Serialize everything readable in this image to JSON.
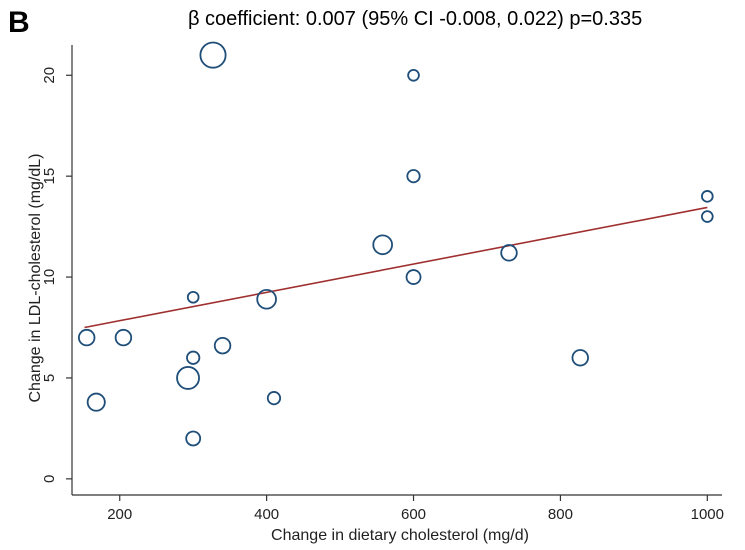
{
  "panel_label": "B",
  "chart_title": "β coefficient: 0.007 (95% CI -0.008, 0.022) p=0.335",
  "colors": {
    "marker_stroke": "#1f4e79",
    "fit_line": "#a0302f",
    "axis": "#333333"
  },
  "chart_data": {
    "type": "scatter",
    "title": "β coefficient: 0.007 (95% CI -0.008, 0.022) p=0.335",
    "xlabel": "Change in dietary cholesterol (mg/d)",
    "ylabel": "Change in LDL-cholesterol (mg/dL)",
    "xlim": [
      135,
      1020
    ],
    "ylim": [
      -0.8,
      21.5
    ],
    "xticks": [
      200,
      400,
      600,
      800,
      1000
    ],
    "yticks": [
      0,
      5,
      10,
      15,
      20
    ],
    "grid": false,
    "marker": "hollow circle, size proportional to study weight",
    "points": [
      {
        "x": 155,
        "y": 7.0,
        "weight": 3
      },
      {
        "x": 168,
        "y": 3.8,
        "weight": 3.5
      },
      {
        "x": 205,
        "y": 7.0,
        "weight": 3
      },
      {
        "x": 293,
        "y": 5.0,
        "weight": 5
      },
      {
        "x": 300,
        "y": 9.0,
        "weight": 1.5
      },
      {
        "x": 300,
        "y": 6.0,
        "weight": 2
      },
      {
        "x": 300,
        "y": 2.0,
        "weight": 2.5
      },
      {
        "x": 327,
        "y": 21.0,
        "weight": 6
      },
      {
        "x": 340,
        "y": 6.6,
        "weight": 3
      },
      {
        "x": 400,
        "y": 8.9,
        "weight": 4
      },
      {
        "x": 410,
        "y": 4.0,
        "weight": 2
      },
      {
        "x": 558,
        "y": 11.6,
        "weight": 4
      },
      {
        "x": 600,
        "y": 20.0,
        "weight": 1.5
      },
      {
        "x": 600,
        "y": 15.0,
        "weight": 2
      },
      {
        "x": 600,
        "y": 10.0,
        "weight": 2.5
      },
      {
        "x": 730,
        "y": 11.2,
        "weight": 3
      },
      {
        "x": 827,
        "y": 6.0,
        "weight": 3
      },
      {
        "x": 1000,
        "y": 14.0,
        "weight": 1.5
      },
      {
        "x": 1000,
        "y": 13.0,
        "weight": 1.5
      }
    ],
    "fit_line": {
      "x": [
        152,
        1000
      ],
      "y": [
        7.5,
        13.45
      ]
    }
  }
}
